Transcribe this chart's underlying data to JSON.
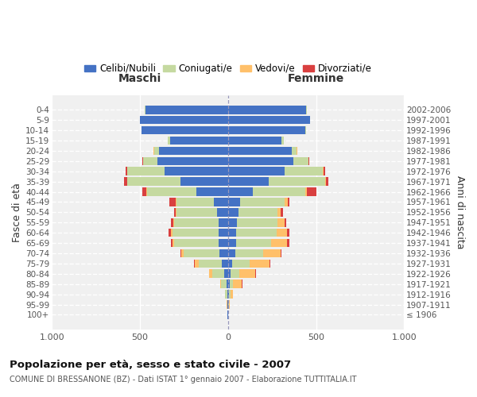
{
  "age_groups": [
    "100+",
    "95-99",
    "90-94",
    "85-89",
    "80-84",
    "75-79",
    "70-74",
    "65-69",
    "60-64",
    "55-59",
    "50-54",
    "45-49",
    "40-44",
    "35-39",
    "30-34",
    "25-29",
    "20-24",
    "15-19",
    "10-14",
    "5-9",
    "0-4"
  ],
  "birth_years": [
    "≤ 1906",
    "1907-1911",
    "1912-1916",
    "1917-1921",
    "1922-1926",
    "1927-1931",
    "1932-1936",
    "1937-1941",
    "1942-1946",
    "1947-1951",
    "1952-1956",
    "1957-1961",
    "1962-1966",
    "1967-1971",
    "1972-1976",
    "1977-1981",
    "1982-1986",
    "1987-1991",
    "1992-1996",
    "1997-2001",
    "2002-2006"
  ],
  "maschi": {
    "celibi": [
      2,
      2,
      5,
      10,
      20,
      35,
      50,
      55,
      55,
      55,
      60,
      80,
      180,
      270,
      360,
      400,
      390,
      330,
      490,
      500,
      470
    ],
    "coniugati": [
      0,
      3,
      10,
      30,
      70,
      130,
      200,
      250,
      260,
      250,
      230,
      210,
      280,
      300,
      210,
      80,
      30,
      10,
      3,
      2,
      2
    ],
    "vedovi": [
      0,
      1,
      3,
      5,
      15,
      25,
      15,
      10,
      8,
      5,
      5,
      5,
      5,
      3,
      3,
      3,
      2,
      1,
      0,
      0,
      0
    ],
    "divorziati": [
      0,
      0,
      0,
      0,
      2,
      5,
      5,
      10,
      15,
      15,
      12,
      40,
      20,
      15,
      8,
      5,
      3,
      1,
      0,
      0,
      0
    ]
  },
  "femmine": {
    "nubili": [
      2,
      3,
      5,
      10,
      15,
      25,
      40,
      45,
      45,
      50,
      60,
      70,
      140,
      230,
      320,
      370,
      360,
      305,
      440,
      465,
      445
    ],
    "coniugate": [
      0,
      2,
      8,
      20,
      50,
      100,
      160,
      200,
      230,
      230,
      220,
      250,
      300,
      320,
      220,
      85,
      30,
      10,
      3,
      2,
      1
    ],
    "vedove": [
      0,
      3,
      15,
      50,
      90,
      110,
      100,
      90,
      60,
      40,
      20,
      20,
      10,
      5,
      5,
      3,
      2,
      1,
      0,
      0,
      0
    ],
    "divorziate": [
      0,
      0,
      0,
      2,
      5,
      5,
      5,
      15,
      15,
      12,
      12,
      10,
      50,
      15,
      5,
      3,
      1,
      1,
      0,
      0,
      0
    ]
  },
  "colors": {
    "celibi": "#4472c4",
    "coniugati": "#c5d9a0",
    "vedovi": "#ffc06a",
    "divorziati": "#d94040"
  },
  "title": "Popolazione per età, sesso e stato civile - 2007",
  "subtitle": "COMUNE DI BRESSANONE (BZ) - Dati ISTAT 1° gennaio 2007 - Elaborazione TUTTITALIA.IT",
  "ylabel_left": "Fasce di età",
  "ylabel_right": "Anni di nascita",
  "xlabel_maschi": "Maschi",
  "xlabel_femmine": "Femmine",
  "xlim": 1000,
  "legend_labels": [
    "Celibi/Nubili",
    "Coniugati/e",
    "Vedovi/e",
    "Divorziati/e"
  ],
  "background": "#f0f0f0"
}
